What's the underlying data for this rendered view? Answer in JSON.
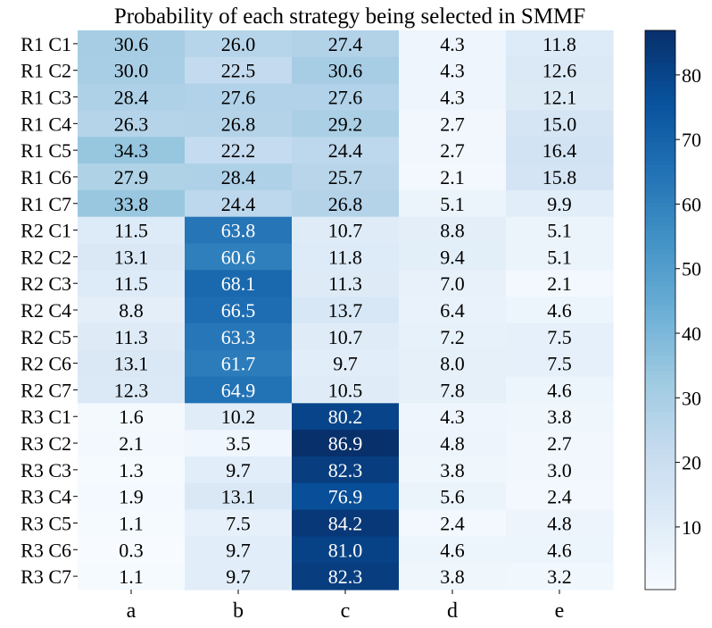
{
  "chart_data": {
    "type": "heatmap",
    "title": "Probability of each strategy being selected in SMMF",
    "xlabel": "",
    "ylabel": "",
    "columns": [
      "a",
      "b",
      "c",
      "d",
      "e"
    ],
    "rows": [
      "R1 C1",
      "R1 C2",
      "R1 C3",
      "R1 C4",
      "R1 C5",
      "R1 C6",
      "R1 C7",
      "R2 C1",
      "R2 C2",
      "R2 C3",
      "R2 C4",
      "R2 C5",
      "R2 C6",
      "R2 C7",
      "R3 C1",
      "R3 C2",
      "R3 C3",
      "R3 C4",
      "R3 C5",
      "R3 C6",
      "R3 C7"
    ],
    "values": [
      [
        30.6,
        26.0,
        27.4,
        4.3,
        11.8
      ],
      [
        30.0,
        22.5,
        30.6,
        4.3,
        12.6
      ],
      [
        28.4,
        27.6,
        27.6,
        4.3,
        12.1
      ],
      [
        26.3,
        26.8,
        29.2,
        2.7,
        15.0
      ],
      [
        34.3,
        22.2,
        24.4,
        2.7,
        16.4
      ],
      [
        27.9,
        28.4,
        25.7,
        2.1,
        15.8
      ],
      [
        33.8,
        24.4,
        26.8,
        5.1,
        9.9
      ],
      [
        11.5,
        63.8,
        10.7,
        8.8,
        5.1
      ],
      [
        13.1,
        60.6,
        11.8,
        9.4,
        5.1
      ],
      [
        11.5,
        68.1,
        11.3,
        7.0,
        2.1
      ],
      [
        8.8,
        66.5,
        13.7,
        6.4,
        4.6
      ],
      [
        11.3,
        63.3,
        10.7,
        7.2,
        7.5
      ],
      [
        13.1,
        61.7,
        9.7,
        8.0,
        7.5
      ],
      [
        12.3,
        64.9,
        10.5,
        7.8,
        4.6
      ],
      [
        1.6,
        10.2,
        80.2,
        4.3,
        3.8
      ],
      [
        2.1,
        3.5,
        86.9,
        4.8,
        2.7
      ],
      [
        1.3,
        9.7,
        82.3,
        3.8,
        3.0
      ],
      [
        1.9,
        13.1,
        76.9,
        5.6,
        2.4
      ],
      [
        1.1,
        7.5,
        84.2,
        2.4,
        4.8
      ],
      [
        0.3,
        9.7,
        81.0,
        4.6,
        4.6
      ],
      [
        1.1,
        9.7,
        82.3,
        3.8,
        3.2
      ]
    ],
    "colormap": "Blues",
    "vmin": 0.3,
    "vmax": 86.9,
    "colorbar_ticks": [
      10,
      20,
      30,
      40,
      50,
      60,
      70,
      80
    ],
    "text_light_color": "#ffffff",
    "text_dark_color": "#000000"
  }
}
